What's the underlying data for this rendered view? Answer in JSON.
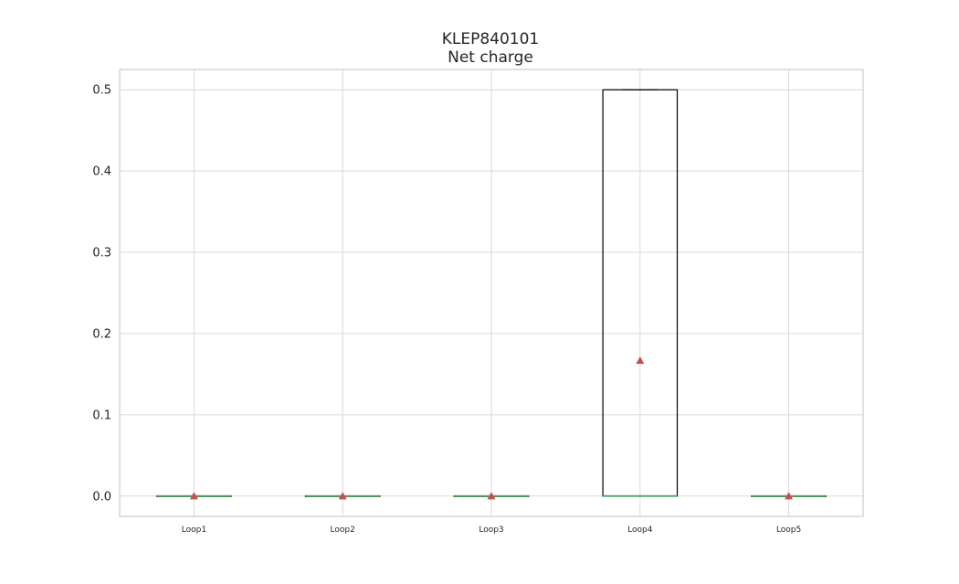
{
  "chart_data": {
    "type": "box",
    "title": "KLEP840101",
    "subtitle": "Net charge",
    "xlabel": "",
    "ylabel": "",
    "categories": [
      "Loop1",
      "Loop2",
      "Loop3",
      "Loop4",
      "Loop5"
    ],
    "ylim": [
      -0.025,
      0.525
    ],
    "yticks": [
      0.0,
      0.1,
      0.2,
      0.3,
      0.4,
      0.5
    ],
    "ytick_labels": [
      "0.0",
      "0.1",
      "0.2",
      "0.3",
      "0.4",
      "0.5"
    ],
    "grid": true,
    "boxes": [
      {
        "category": "Loop1",
        "whislo": 0.0,
        "q1": 0.0,
        "median": 0.0,
        "q3": 0.0,
        "whishi": 0.0,
        "mean": 0.0
      },
      {
        "category": "Loop2",
        "whislo": 0.0,
        "q1": 0.0,
        "median": 0.0,
        "q3": 0.0,
        "whishi": 0.0,
        "mean": 0.0
      },
      {
        "category": "Loop3",
        "whislo": 0.0,
        "q1": 0.0,
        "median": 0.0,
        "q3": 0.0,
        "whishi": 0.0,
        "mean": 0.0
      },
      {
        "category": "Loop4",
        "whislo": 0.0,
        "q1": 0.0,
        "median": 0.0,
        "q3": 0.5,
        "whishi": 0.5,
        "mean": 0.1667
      },
      {
        "category": "Loop5",
        "whislo": 0.0,
        "q1": 0.0,
        "median": 0.0,
        "q3": 0.0,
        "whishi": 0.0,
        "mean": 0.0
      }
    ],
    "colors": {
      "box": "#000000",
      "median": "#55a868",
      "mean_marker": "#c44e52",
      "grid": "#d9d9d9",
      "frame": "#cccccc"
    }
  }
}
